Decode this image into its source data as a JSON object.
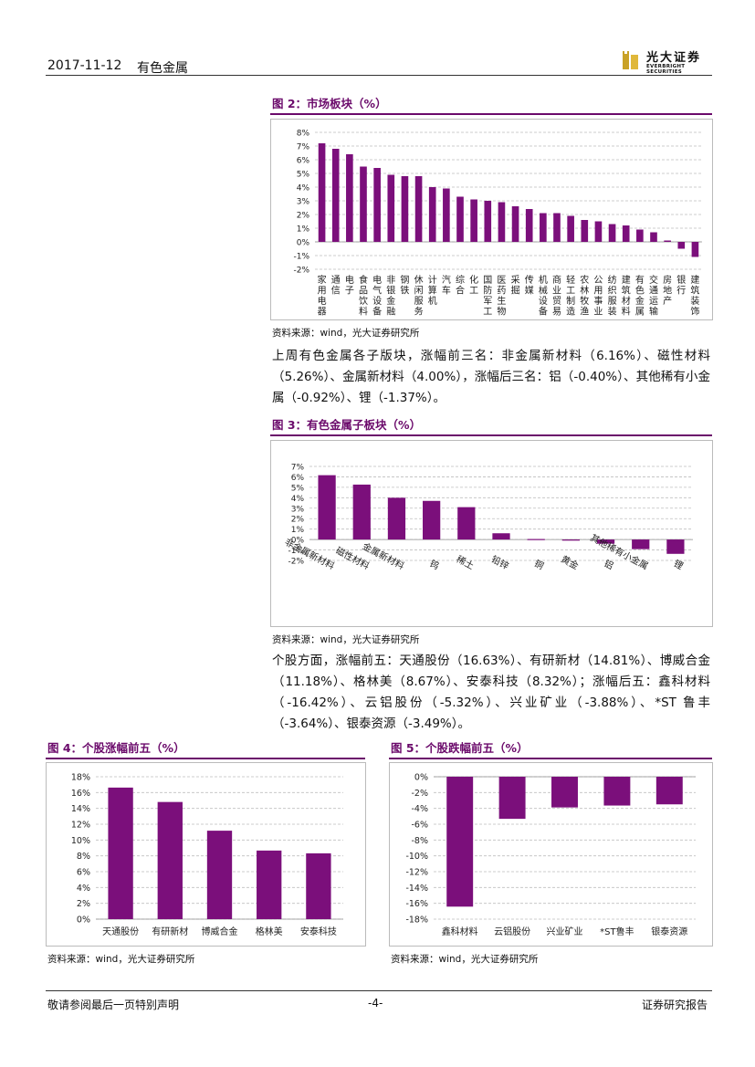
{
  "header": {
    "date": "2017-11-12",
    "sector": "有色金属",
    "logo_cn": "光大证券",
    "logo_en": "EVERBRIGHT SECURITIES"
  },
  "fig2": {
    "title": "图 2：市场板块（%）",
    "source": "资料来源：wind，光大证券研究所"
  },
  "para1": "上周有色金属各子版块，涨幅前三名：非金属新材料（6.16%）、磁性材料（5.26%）、金属新材料（4.00%），涨幅后三名：铝（-0.40%）、其他稀有小金属（-0.92%）、锂（-1.37%）。",
  "fig3": {
    "title": "图 3：有色金属子板块（%）",
    "source": "资料来源：wind，光大证券研究所"
  },
  "para2": "个股方面，涨幅前五：天通股份（16.63%）、有研新材（14.81%）、博威合金（11.18%）、格林美（8.67%）、安泰科技（8.32%）；涨幅后五：鑫科材料（-16.42%）、云铝股份（-5.32%）、兴业矿业（-3.88%）、*ST 鲁丰（-3.64%）、银泰资源（-3.49%）。",
  "fig4": {
    "title": "图 4：个股涨幅前五（%）",
    "source": "资料来源：wind，光大证券研究所"
  },
  "fig5": {
    "title": "图 5：个股跌幅前五（%）",
    "source": "资料来源：wind，光大证券研究所"
  },
  "footer": {
    "disclaimer": "敬请参阅最后一页特别声明",
    "page": "-4-",
    "report_type": "证券研究报告"
  },
  "colors": {
    "bar": "#7b0f7b",
    "title": "#6b0a6b",
    "logo": "#c9a227"
  },
  "chart_data": [
    {
      "type": "bar",
      "id": "fig2",
      "categories": [
        "家用电器",
        "通信",
        "电子",
        "食品饮料",
        "电气设备",
        "非银金融",
        "钢铁",
        "休闲服务",
        "计算机",
        "汽车",
        "综合",
        "化工",
        "国防军工",
        "医药生物",
        "采掘",
        "传媒",
        "机械设备",
        "商业贸易",
        "轻工制造",
        "农林牧渔",
        "公用事业",
        "纺织服装",
        "建筑材料",
        "有色金属",
        "交通运输",
        "房地产",
        "银行",
        "建筑装饰"
      ],
      "values": [
        7.2,
        6.8,
        6.4,
        5.5,
        5.4,
        4.9,
        4.8,
        4.8,
        4.0,
        3.9,
        3.3,
        3.1,
        3.0,
        2.9,
        2.6,
        2.4,
        2.1,
        2.1,
        1.9,
        1.6,
        1.5,
        1.3,
        1.2,
        0.9,
        0.7,
        0.1,
        -0.5,
        -1.1
      ],
      "ylim": [
        -2,
        8
      ],
      "yticks": [
        "-2%",
        "-1%",
        "0%",
        "1%",
        "2%",
        "3%",
        "4%",
        "5%",
        "6%",
        "7%",
        "8%"
      ],
      "grid": true
    },
    {
      "type": "bar",
      "id": "fig3",
      "categories": [
        "非金属新材料",
        "磁性材料",
        "金属新材料",
        "钨",
        "稀土",
        "铅锌",
        "铜",
        "黄金",
        "铝",
        "其他稀有小金属",
        "锂"
      ],
      "values": [
        6.16,
        5.26,
        4.0,
        3.7,
        3.1,
        0.6,
        0.05,
        -0.1,
        -0.4,
        -0.92,
        -1.37
      ],
      "ylim": [
        -2,
        7
      ],
      "yticks": [
        "-2%",
        "-1%",
        "0%",
        "1%",
        "2%",
        "3%",
        "4%",
        "5%",
        "6%",
        "7%"
      ],
      "grid": true
    },
    {
      "type": "bar",
      "id": "fig4",
      "categories": [
        "天通股份",
        "有研新材",
        "博威合金",
        "格林美",
        "安泰科技"
      ],
      "values": [
        16.63,
        14.81,
        11.18,
        8.67,
        8.32
      ],
      "ylim": [
        0,
        18
      ],
      "yticks": [
        "0%",
        "2%",
        "4%",
        "6%",
        "8%",
        "10%",
        "12%",
        "14%",
        "16%",
        "18%"
      ],
      "grid": true
    },
    {
      "type": "bar",
      "id": "fig5",
      "categories": [
        "鑫科材料",
        "云铝股份",
        "兴业矿业",
        "*ST鲁丰",
        "银泰资源"
      ],
      "values": [
        -16.42,
        -5.32,
        -3.88,
        -3.64,
        -3.49
      ],
      "ylim": [
        -18,
        0
      ],
      "yticks": [
        "-18%",
        "-16%",
        "-14%",
        "-12%",
        "-10%",
        "-8%",
        "-6%",
        "-4%",
        "-2%",
        "0%"
      ],
      "grid": true
    }
  ]
}
